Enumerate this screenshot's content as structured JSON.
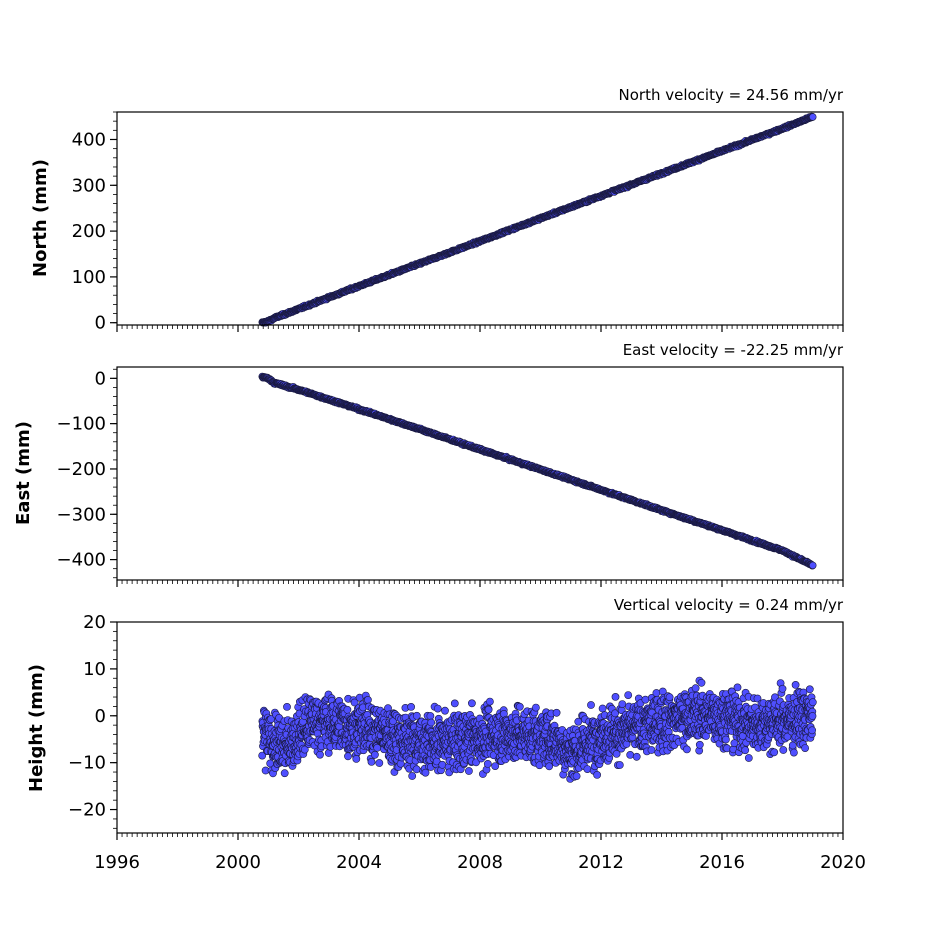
{
  "figure": {
    "x_range": [
      1996,
      2020
    ],
    "x_ticks": [
      1996,
      2000,
      2004,
      2008,
      2012,
      2016,
      2020
    ],
    "point_color": "#4f4fff",
    "point_edge_color": "#1a1a40"
  },
  "chart_data": [
    {
      "type": "scatter",
      "panel": "north",
      "title": "North velocity = 24.56 mm/yr",
      "ylabel": "North (mm)",
      "xlim": [
        1996,
        2020
      ],
      "ylim": [
        -5,
        460
      ],
      "y_ticks": [
        0,
        100,
        200,
        300,
        400
      ],
      "series": [
        {
          "x": [
            2000.8,
            2001.0,
            2001.2,
            2002.0,
            2004.0,
            2006.0,
            2008.0,
            2010.0,
            2012.0,
            2014.0,
            2016.0,
            2018.0,
            2019.0
          ],
          "y": [
            0,
            3,
            10,
            30,
            80,
            129,
            178,
            228,
            277,
            326,
            375,
            424,
            450
          ]
        }
      ]
    },
    {
      "type": "scatter",
      "panel": "east",
      "title": "East velocity = -22.25 mm/yr",
      "ylabel": "East (mm)",
      "xlim": [
        1996,
        2020
      ],
      "ylim": [
        -445,
        25
      ],
      "y_ticks": [
        0,
        -100,
        -200,
        -300,
        -400
      ],
      "series": [
        {
          "x": [
            2000.8,
            2001.0,
            2001.2,
            2002.0,
            2004.0,
            2006.0,
            2008.0,
            2010.0,
            2012.0,
            2014.0,
            2016.0,
            2018.0,
            2019.0
          ],
          "y": [
            3,
            0,
            -10,
            -25,
            -68,
            -112,
            -157,
            -201,
            -246,
            -291,
            -335,
            -380,
            -413
          ]
        }
      ]
    },
    {
      "type": "scatter",
      "panel": "vertical",
      "title": "Vertical velocity = 0.24 mm/yr",
      "ylabel": "Height (mm)",
      "xlim": [
        1996,
        2020
      ],
      "ylim": [
        -25,
        20
      ],
      "y_ticks": [
        20,
        10,
        0,
        -10,
        -20
      ],
      "series": [
        {
          "x": [
            2000.8,
            2001.5,
            2002.5,
            2003.5,
            2004.5,
            2005.5,
            2006.5,
            2007.5,
            2008.5,
            2009.5,
            2010.5,
            2011.0,
            2012.0,
            2013.0,
            2014.0,
            2015.0,
            2016.0,
            2017.0,
            2018.0,
            2019.0
          ],
          "y": [
            -4,
            -7,
            -1,
            -2,
            -3,
            -5,
            -6,
            -5,
            -4,
            -4,
            -5,
            -8,
            -4,
            -3,
            -1,
            0,
            0,
            -2,
            -1,
            0
          ]
        }
      ]
    }
  ]
}
